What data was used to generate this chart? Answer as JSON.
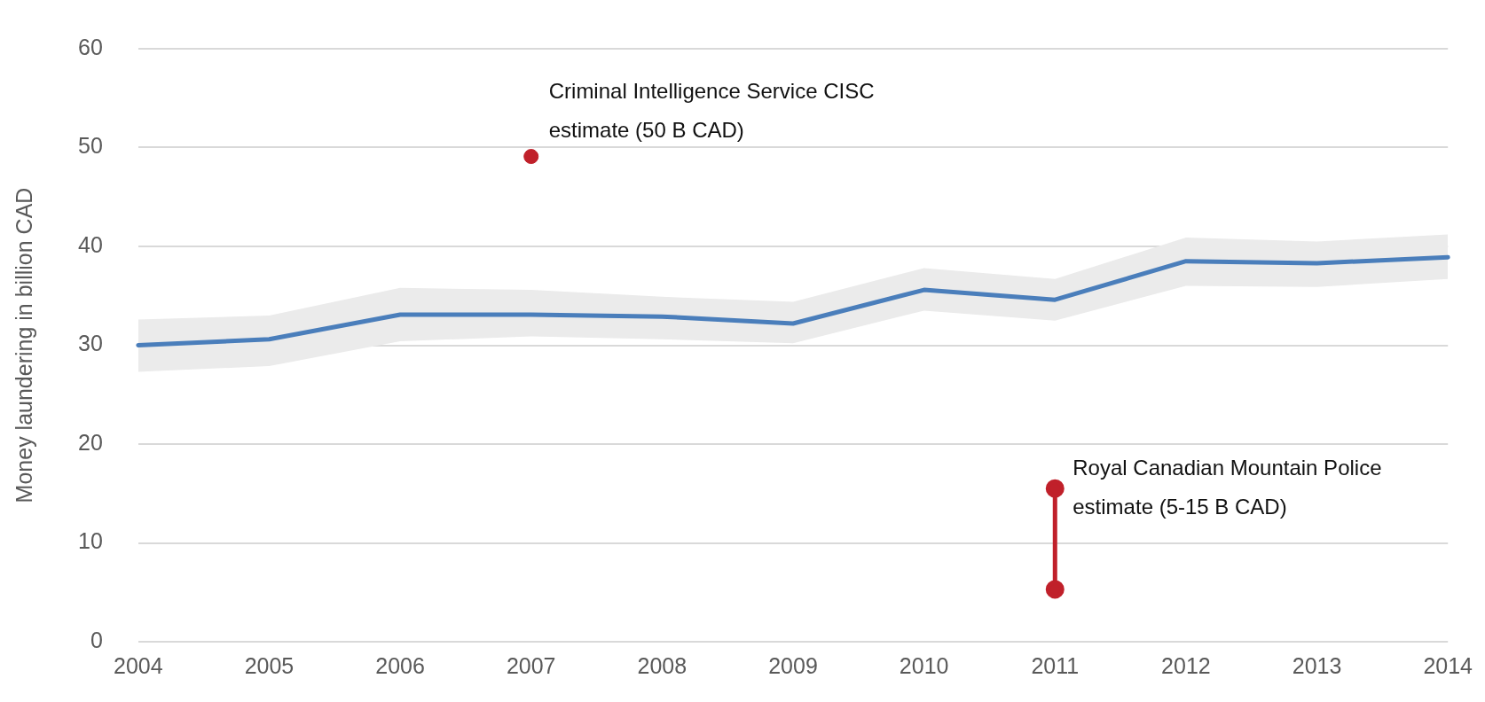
{
  "chart_data": {
    "type": "line",
    "ylabel": "Money laundering in billion CAD",
    "x": [
      2004,
      2005,
      2006,
      2007,
      2008,
      2009,
      2010,
      2011,
      2012,
      2013,
      2014
    ],
    "series": [
      {
        "color": "#4a7ebb",
        "marker": "none",
        "values": [
          30.0,
          30.6,
          33.1,
          33.1,
          32.9,
          32.2,
          35.6,
          34.6,
          38.5,
          38.3,
          38.9
        ],
        "lower": [
          27.3,
          27.9,
          30.4,
          30.9,
          30.6,
          30.2,
          33.5,
          32.5,
          36.0,
          35.9,
          36.7
        ],
        "upper": [
          32.6,
          33.0,
          35.8,
          35.6,
          34.9,
          34.4,
          37.8,
          36.7,
          40.9,
          40.5,
          41.2
        ]
      },
      {
        "type": "scatter",
        "color": "#c0202a",
        "marker": "circle",
        "values": [
          null,
          null,
          null,
          49.1,
          null,
          null,
          null,
          null,
          null,
          null,
          null
        ]
      },
      {
        "type": "line",
        "color": "#c0202a",
        "marker": "circle",
        "x": [
          2011,
          2011
        ],
        "values": [
          5.3,
          15.5
        ]
      }
    ],
    "xlim": [
      2004,
      2014
    ],
    "xticks": [
      2004,
      2005,
      2006,
      2007,
      2008,
      2009,
      2010,
      2011,
      2012,
      2013,
      2014
    ],
    "ylim": [
      0,
      60
    ],
    "yticks": [
      0,
      10,
      20,
      30,
      40,
      50,
      60
    ],
    "grid": "y",
    "legend": false,
    "annotations": [
      {
        "text": "Criminal Intelligence Service CISC estimate (50 B CAD)",
        "x": 2007,
        "y": 49.1
      },
      {
        "text": "Royal Canadian Mountain Police estimate (5-15 B CAD)",
        "x": 2011,
        "y": 15.5
      }
    ]
  }
}
